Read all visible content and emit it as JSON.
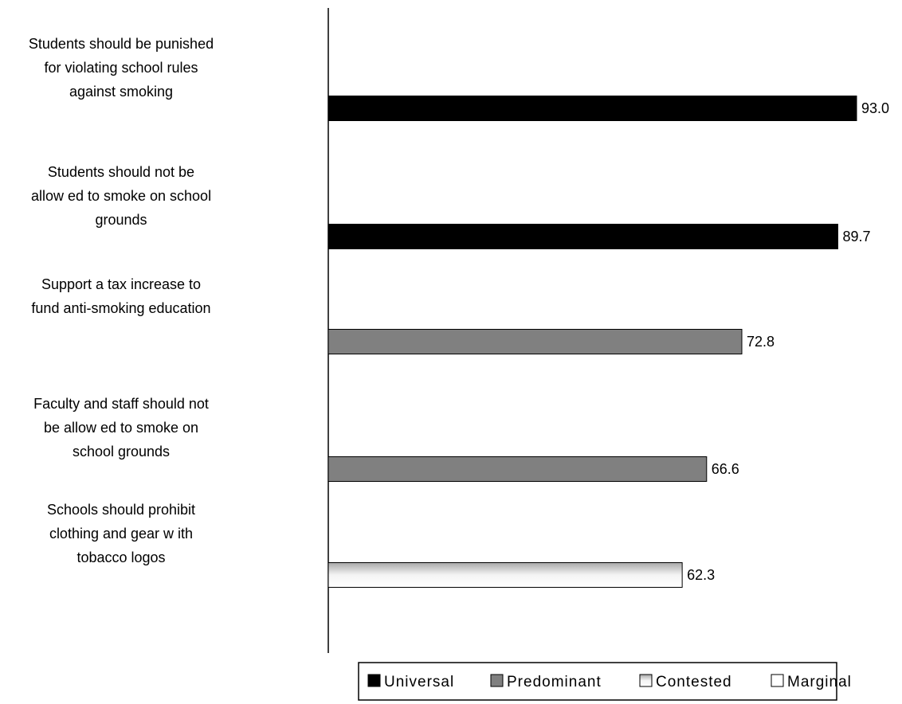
{
  "chart_data": {
    "type": "bar",
    "orientation": "horizontal",
    "categories": [
      [
        "Students should be punished",
        "for violating school rules",
        "against smoking"
      ],
      [
        "Students should not be",
        "allow ed to smoke on school",
        "grounds"
      ],
      [
        "Support a tax increase to",
        "fund anti-smoking education"
      ],
      [
        "Faculty and staff should not",
        "be allow ed to smoke on",
        "school grounds"
      ],
      [
        "Schools should prohibit",
        "clothing and gear w ith",
        "tobacco logos"
      ]
    ],
    "values": [
      93.0,
      89.7,
      72.8,
      66.6,
      62.3
    ],
    "value_labels": [
      "93.0",
      "89.7",
      "72.8",
      "66.6",
      "62.3"
    ],
    "bar_levels": [
      "Universal",
      "Universal",
      "Predominant",
      "Predominant",
      "Contested"
    ],
    "legend": [
      {
        "name": "Universal",
        "color": "#000000",
        "style": "solid"
      },
      {
        "name": "Predominant",
        "color": "#808080",
        "style": "solid"
      },
      {
        "name": "Contested",
        "color": "#d9d9d9",
        "style": "gradient"
      },
      {
        "name": "Marginal",
        "color": "#ffffff",
        "style": "solid"
      }
    ],
    "xlim": [
      0,
      100
    ],
    "grid": false,
    "legend_position": "bottom"
  }
}
